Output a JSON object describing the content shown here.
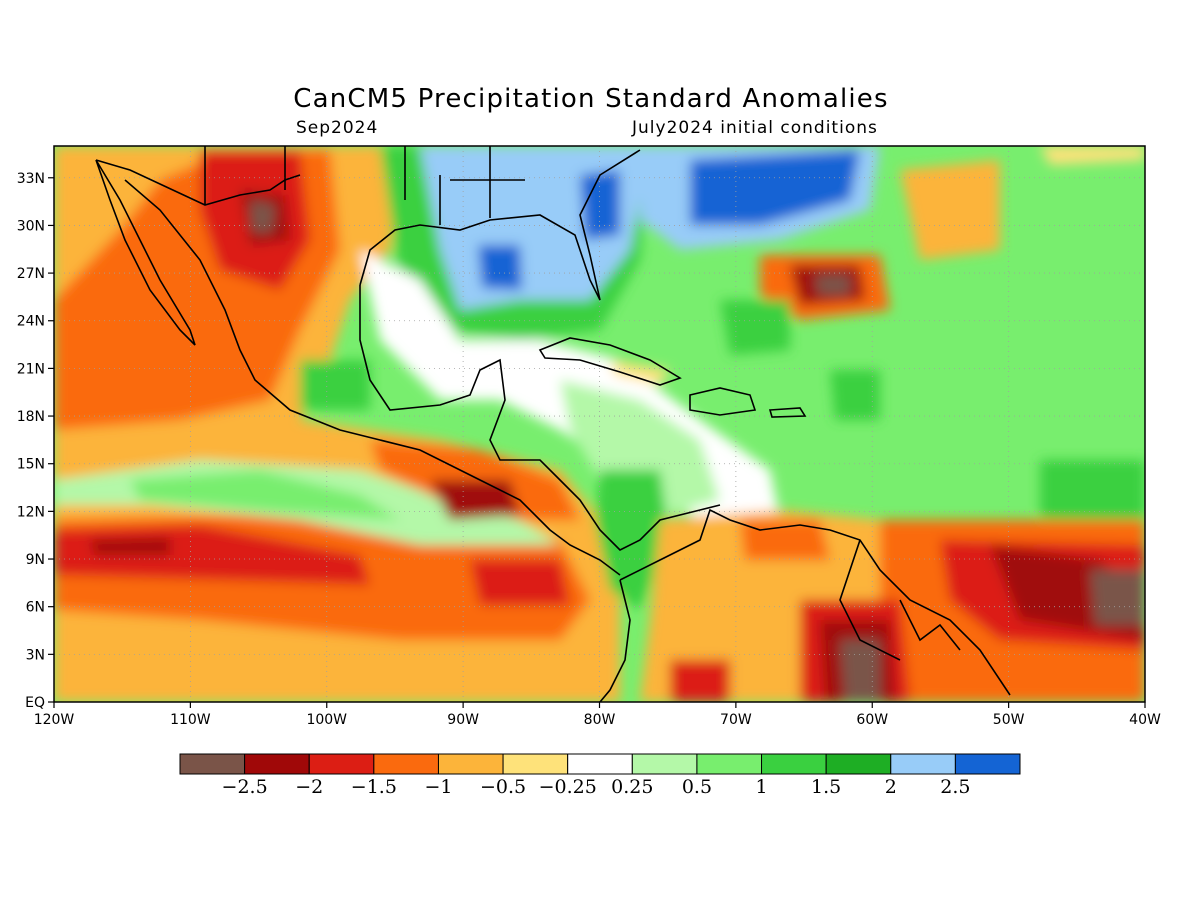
{
  "title": "CanCM5 Precipitation Standard Anomalies",
  "subtitle_left": "Sep2024",
  "subtitle_right": "July2024 initial conditions",
  "map": {
    "lon_range": [
      -120,
      -40
    ],
    "lat_range": [
      0,
      35
    ],
    "lon_ticks": [
      {
        "value": -120,
        "label": "120W"
      },
      {
        "value": -110,
        "label": "110W"
      },
      {
        "value": -100,
        "label": "100W"
      },
      {
        "value": -90,
        "label": "90W"
      },
      {
        "value": -80,
        "label": "80W"
      },
      {
        "value": -70,
        "label": "70W"
      },
      {
        "value": -60,
        "label": "60W"
      },
      {
        "value": -50,
        "label": "50W"
      },
      {
        "value": -40,
        "label": "40W"
      }
    ],
    "lat_ticks": [
      {
        "value": 0,
        "label": "EQ"
      },
      {
        "value": 3,
        "label": "3N"
      },
      {
        "value": 6,
        "label": "6N"
      },
      {
        "value": 9,
        "label": "9N"
      },
      {
        "value": 12,
        "label": "12N"
      },
      {
        "value": 15,
        "label": "15N"
      },
      {
        "value": 18,
        "label": "18N"
      },
      {
        "value": 21,
        "label": "21N"
      },
      {
        "value": 24,
        "label": "24N"
      },
      {
        "value": 27,
        "label": "27N"
      },
      {
        "value": 30,
        "label": "30N"
      },
      {
        "value": 33,
        "label": "33N"
      }
    ]
  },
  "colorbar": {
    "colors": [
      "#7a5448",
      "#a00808",
      "#dc1e14",
      "#fa6a0e",
      "#fcb43a",
      "#fee27a",
      "#ffffff",
      "#b4f8a8",
      "#78ee6e",
      "#3ad040",
      "#1eae24",
      "#98ccf8",
      "#1464d4"
    ],
    "labels": [
      "−2.5",
      "−2",
      "−1.5",
      "−1",
      "−0.5",
      "−0.25",
      "0.25",
      "0.5",
      "1",
      "1.5",
      "2",
      "2.5"
    ]
  }
}
